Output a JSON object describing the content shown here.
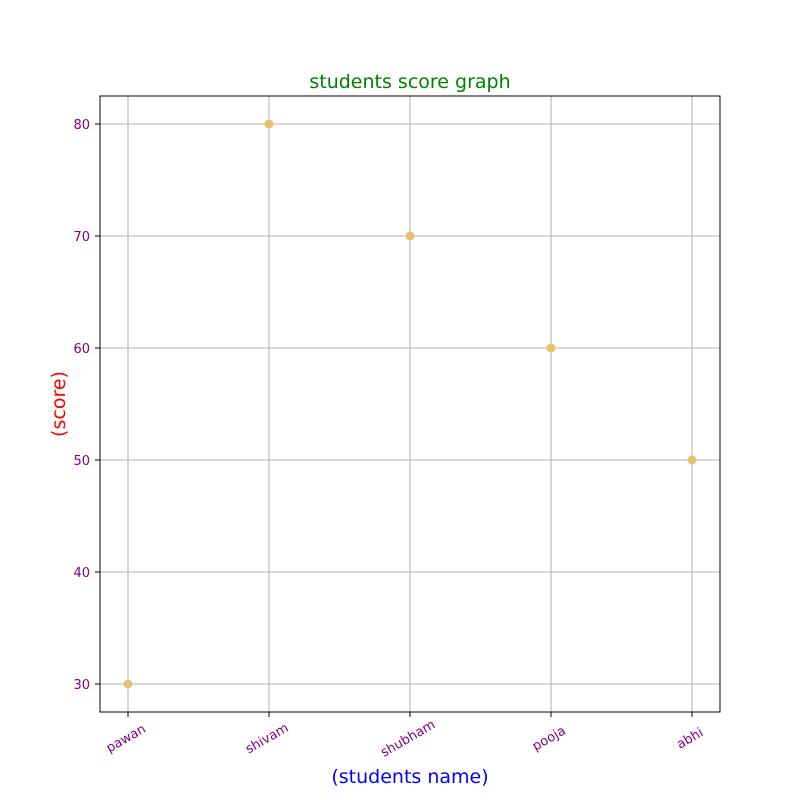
{
  "chart_data": {
    "type": "scatter",
    "title": "students score graph",
    "xlabel": "(students name)",
    "ylabel": "(score)",
    "categories": [
      "pawan",
      "shivam",
      "shubham",
      "pooja",
      "abhi"
    ],
    "values": [
      30,
      80,
      70,
      60,
      50
    ],
    "yticks": [
      30,
      40,
      50,
      60,
      70,
      80
    ],
    "ylim": [
      27.5,
      82.5
    ],
    "xtick_rotation_deg": 30,
    "grid": true,
    "legend": "none"
  },
  "colors": {
    "title": "#008000",
    "xlabel": "#0000ff",
    "ylabel": "#ff0000",
    "ticks": "#800080",
    "points": "#e8c16a",
    "grid": "#b0b0b0",
    "frame": "#000000"
  }
}
